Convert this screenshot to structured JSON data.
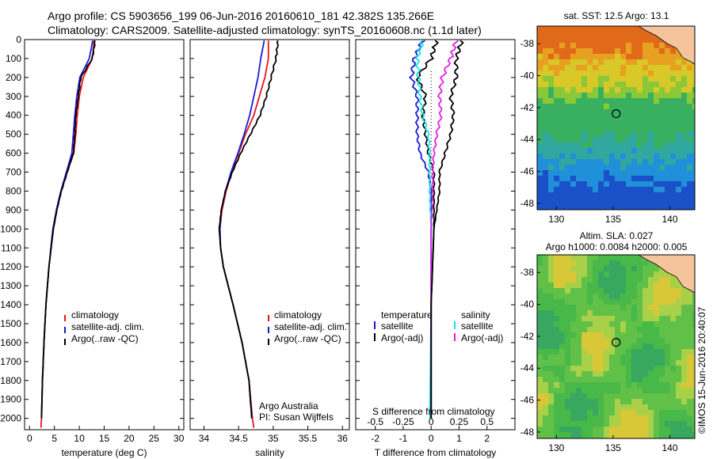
{
  "header": {
    "line1": "Argo profile: CS 5903656_199 06-Jun-2016 20160610_181 42.382S 135.266E",
    "line2": "Climatology: CARS2009. Satellite-adjusted climatology: synTS_20160608.nc (1.1d later)"
  },
  "colors": {
    "climatology": "#e8141a",
    "satellite": "#1a1ad6",
    "argo": "#000000",
    "sat_salinity": "#18e0e8",
    "argo_salinity": "#e020e0"
  },
  "chart_data": [
    {
      "type": "line",
      "name": "temperature-profile",
      "xlabel": "temperature (deg C)",
      "xlim": [
        -1,
        31
      ],
      "ylim": [
        2060,
        0
      ],
      "xticks": [
        0,
        5,
        10,
        15,
        20,
        25,
        30
      ],
      "yticks": [
        0,
        100,
        200,
        300,
        400,
        500,
        600,
        700,
        800,
        900,
        1000,
        1100,
        1200,
        1300,
        1400,
        1500,
        1600,
        1700,
        1800,
        1900,
        2000
      ],
      "legend": [
        "climatology",
        "satellite-adj. clim.",
        "Argo(..raw -QC)"
      ],
      "series": [
        {
          "name": "climatology",
          "color": "#e8141a",
          "depth": [
            5,
            100,
            200,
            300,
            400,
            500,
            600,
            700,
            800,
            900,
            1000,
            1200,
            1400,
            1600,
            1800,
            2000,
            2050
          ],
          "values": [
            13.0,
            12.6,
            10.8,
            10.0,
            9.6,
            9.3,
            8.9,
            7.5,
            6.3,
            5.4,
            4.7,
            3.9,
            3.3,
            2.9,
            2.6,
            2.4,
            2.3
          ]
        },
        {
          "name": "satellite-adj. clim.",
          "color": "#1a1ad6",
          "depth": [
            5,
            100,
            200,
            300,
            400,
            500,
            600,
            700,
            800,
            900,
            1000,
            1200,
            1400,
            1600,
            1800,
            2000
          ],
          "values": [
            12.7,
            12.0,
            10.1,
            9.5,
            9.1,
            8.8,
            8.5,
            7.4,
            6.3,
            5.4,
            4.7,
            3.9,
            3.3,
            2.9,
            2.6,
            2.4
          ]
        },
        {
          "name": "Argo(..raw -QC)",
          "color": "#000000",
          "depth": [
            5,
            100,
            200,
            300,
            400,
            500,
            600,
            700,
            800,
            900,
            1000,
            1200,
            1400,
            1600,
            1800,
            2000
          ],
          "values": [
            13.2,
            12.6,
            10.3,
            9.8,
            9.3,
            9.1,
            8.8,
            7.6,
            6.4,
            5.5,
            4.8,
            3.9,
            3.3,
            2.9,
            2.6,
            2.4
          ]
        }
      ]
    },
    {
      "type": "line",
      "name": "salinity-profile",
      "xlabel": "salinity",
      "xlim": [
        33.8,
        36.1
      ],
      "ylim": [
        2060,
        0
      ],
      "xticks": [
        34,
        34.5,
        35,
        35.5,
        36
      ],
      "legend": [
        "climatology",
        "satellite-adj. clim.",
        "Argo(..raw -QC)"
      ],
      "annotation": [
        "Argo Australia",
        "PI: Susan Wijffels"
      ],
      "series": [
        {
          "name": "climatology",
          "color": "#e8141a",
          "depth": [
            5,
            100,
            200,
            300,
            400,
            500,
            600,
            700,
            800,
            900,
            1000,
            1100,
            1200,
            1400,
            1600,
            1800,
            2000,
            2050
          ],
          "values": [
            34.93,
            34.93,
            34.88,
            34.8,
            34.72,
            34.6,
            34.5,
            34.4,
            34.32,
            34.26,
            34.23,
            34.24,
            34.28,
            34.42,
            34.55,
            34.65,
            34.7,
            34.72
          ]
        },
        {
          "name": "satellite-adj. clim.",
          "color": "#1a1ad6",
          "depth": [
            5,
            100,
            200,
            300,
            400,
            500,
            600,
            700,
            800,
            900,
            1000,
            1100,
            1200,
            1400,
            1600,
            1800,
            2000
          ],
          "values": [
            34.87,
            34.82,
            34.78,
            34.72,
            34.66,
            34.58,
            34.49,
            34.39,
            34.31,
            34.25,
            34.23,
            34.24,
            34.28,
            34.42,
            34.55,
            34.65,
            34.69
          ]
        },
        {
          "name": "Argo(..raw -QC)",
          "color": "#000000",
          "depth": [
            5,
            100,
            200,
            300,
            400,
            500,
            600,
            700,
            800,
            900,
            1000,
            1100,
            1200,
            1400,
            1600,
            1800,
            2000
          ],
          "values": [
            35.07,
            35.04,
            34.97,
            34.9,
            34.81,
            34.67,
            34.53,
            34.41,
            34.31,
            34.25,
            34.22,
            34.24,
            34.28,
            34.42,
            34.55,
            34.65,
            34.69
          ]
        }
      ]
    },
    {
      "type": "line",
      "name": "difference-profile",
      "xlabel": "T difference from climatology",
      "xlabel_top": "S difference from climatology",
      "xlim": [
        -2.7,
        3.0
      ],
      "ylim": [
        2060,
        0
      ],
      "xticks": [
        -2,
        -1,
        0,
        1,
        2
      ],
      "top_ticks": [
        -0.5,
        -0.25,
        0,
        0.25,
        0.5
      ],
      "legend_temperature": [
        "temperature",
        "satellite",
        "Argo(-adj)"
      ],
      "legend_salinity": [
        "salinity",
        "satellite",
        "Argo(-adj)"
      ],
      "series": [
        {
          "name": "T satellite",
          "color": "#1a1ad6",
          "depth": [
            5,
            100,
            200,
            300,
            400,
            500,
            600,
            700,
            800,
            900,
            1000,
            1400,
            2000
          ],
          "values": [
            -0.3,
            -0.6,
            -0.7,
            -0.5,
            -0.5,
            -0.5,
            -0.4,
            -0.1,
            0.0,
            0.0,
            0.0,
            0.0,
            0.0
          ]
        },
        {
          "name": "T Argo(-adj)",
          "color": "#000000",
          "depth": [
            5,
            100,
            200,
            300,
            400,
            500,
            600,
            700,
            800,
            900,
            1000,
            1400,
            2000
          ],
          "values": [
            0.2,
            0.0,
            -0.5,
            -0.2,
            -0.3,
            -0.2,
            -0.1,
            0.1,
            0.1,
            0.1,
            0.1,
            0.0,
            0.0
          ]
        },
        {
          "name": "S satellite",
          "color": "#18e0e8",
          "depth": [
            5,
            100,
            200,
            300,
            400,
            500,
            600,
            700,
            800,
            900,
            1000,
            1400,
            2000
          ],
          "values": [
            -0.3,
            -0.5,
            -0.45,
            -0.4,
            -0.3,
            -0.1,
            -0.05,
            -0.05,
            -0.05,
            -0.03,
            0.0,
            0.0,
            -0.05
          ]
        },
        {
          "name": "S Argo(-adj)",
          "color": "#e020e0",
          "depth": [
            5,
            100,
            200,
            300,
            400,
            500,
            600,
            700,
            800,
            900,
            1000,
            1400,
            2000
          ],
          "values": [
            0.9,
            0.7,
            0.4,
            0.3,
            0.35,
            0.2,
            0.1,
            0.05,
            0.05,
            0.03,
            0.0,
            0.0,
            0.0
          ]
        },
        {
          "name": "S Argo(-adj) black",
          "color": "#000000",
          "depth": [
            5,
            100,
            200,
            300,
            400,
            500,
            600,
            700,
            800,
            900,
            1000,
            1400,
            2000
          ],
          "values": [
            1.1,
            0.9,
            0.9,
            0.7,
            0.8,
            0.7,
            0.5,
            0.3,
            0.3,
            0.2,
            0.1,
            0.0,
            0.0
          ]
        }
      ]
    },
    {
      "type": "heatmap",
      "name": "sst-map",
      "title": "sat. SST: 12.5 Argo: 13.1",
      "xlim": [
        128.3,
        142.2
      ],
      "ylim": [
        -48.4,
        -36.9
      ],
      "xticks": [
        130,
        135,
        140
      ],
      "yticks": [
        -38,
        -40,
        -42,
        -44,
        -46,
        -48
      ],
      "marker": {
        "lon": 135.266,
        "lat": -42.382
      }
    },
    {
      "type": "heatmap",
      "name": "sla-map",
      "title": "Altim. SLA: 0.027",
      "subtitle": "Argo h1000: 0.0084 h2000: 0.005",
      "xlim": [
        128.3,
        142.2
      ],
      "ylim": [
        -48.4,
        -36.9
      ],
      "xticks": [
        130,
        135,
        140
      ],
      "yticks": [
        -38,
        -40,
        -42,
        -44,
        -46,
        -48
      ],
      "marker": {
        "lon": 135.266,
        "lat": -42.382
      }
    }
  ],
  "footer": {
    "credit": "©IMOS 15-Jun-2016 20:40:07"
  }
}
